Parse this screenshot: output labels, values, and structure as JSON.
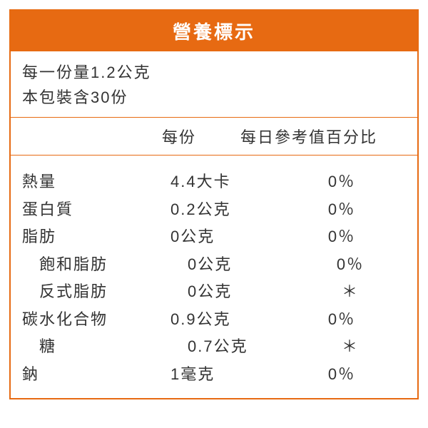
{
  "title": "營養標示",
  "serving": {
    "line1": "每一份量1.2公克",
    "line2": "本包裝含30份"
  },
  "headers": {
    "per_serving": "每份",
    "daily_value": "每日參考值百分比"
  },
  "rows": [
    {
      "label": "熱量",
      "indent": 0,
      "per_serving": "4.4大卡",
      "dv": "0％"
    },
    {
      "label": "蛋白質",
      "indent": 0,
      "per_serving": "0.2公克",
      "dv": "0％"
    },
    {
      "label": "脂肪",
      "indent": 0,
      "per_serving": "0公克",
      "dv": "0％"
    },
    {
      "label": "飽和脂肪",
      "indent": 1,
      "per_serving": "0公克",
      "dv": "0％"
    },
    {
      "label": "反式脂肪",
      "indent": 1,
      "per_serving": "0公克",
      "dv": "＊"
    },
    {
      "label": "碳水化合物",
      "indent": 0,
      "per_serving": "0.9公克",
      "dv": "0％"
    },
    {
      "label": "糖",
      "indent": 1,
      "per_serving": "0.7公克",
      "dv": "＊"
    },
    {
      "label": "鈉",
      "indent": 0,
      "per_serving": "1毫克",
      "dv": "0％"
    }
  ],
  "colors": {
    "accent": "#e76a12",
    "text": "#333333",
    "background": "#ffffff"
  }
}
